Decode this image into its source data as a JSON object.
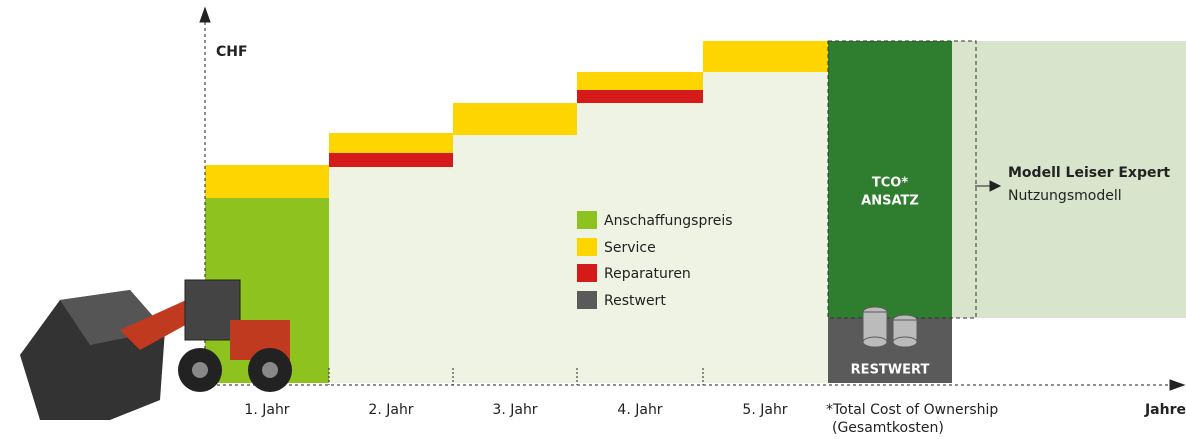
{
  "axis": {
    "y_label": "CHF",
    "x_label": "Jahre"
  },
  "years": [
    "1. Jahr",
    "2. Jahr",
    "3. Jahr",
    "4. Jahr",
    "5. Jahr"
  ],
  "legend": [
    "Anschaffungspreis",
    "Service",
    "Reparaturen",
    "Restwert"
  ],
  "tco": {
    "title_line1": "TCO*",
    "title_line2": "ANSATZ",
    "residual": "RESTWERT",
    "footnote_line1": "*Total Cost of Ownership",
    "footnote_line2": "(Gesamtkosten)"
  },
  "model": {
    "title": "Modell Leiser Expert",
    "subtitle": "Nutzungsmodell"
  }
}
